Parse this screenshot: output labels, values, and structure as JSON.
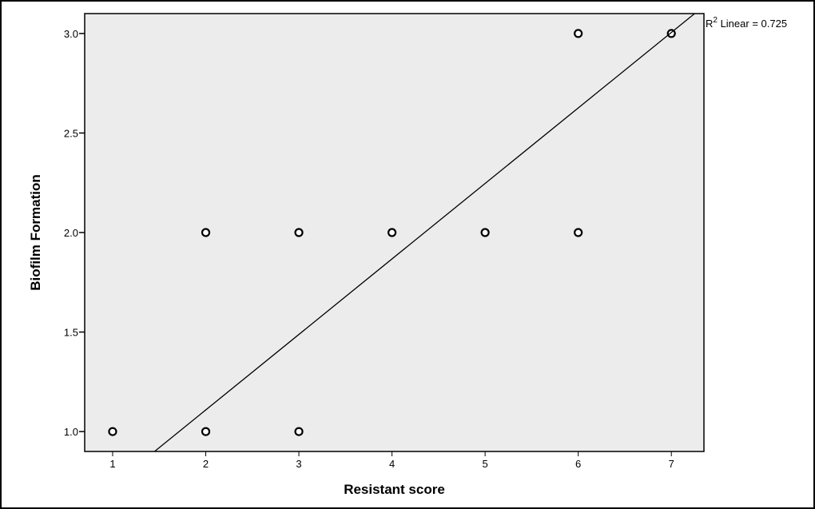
{
  "chart_data": {
    "type": "scatter",
    "title": "",
    "xlabel": "Resistant score",
    "ylabel": "Biofilm Formation",
    "xlim": [
      0.7,
      7.35
    ],
    "ylim": [
      0.9,
      3.1
    ],
    "xticks": [
      1,
      2,
      3,
      4,
      5,
      6,
      7
    ],
    "yticks": [
      1.0,
      1.5,
      2.0,
      2.5,
      3.0
    ],
    "ytick_labels": [
      "1.0",
      "1.5",
      "2.0",
      "2.5",
      "3.0"
    ],
    "points": [
      {
        "x": 1,
        "y": 1
      },
      {
        "x": 2,
        "y": 1
      },
      {
        "x": 3,
        "y": 1
      },
      {
        "x": 2,
        "y": 2
      },
      {
        "x": 3,
        "y": 2
      },
      {
        "x": 4,
        "y": 2
      },
      {
        "x": 5,
        "y": 2
      },
      {
        "x": 6,
        "y": 2
      },
      {
        "x": 6,
        "y": 3
      },
      {
        "x": 7,
        "y": 3
      }
    ],
    "fit_line": {
      "type": "linear",
      "x": [
        1.45,
        7.25
      ],
      "y": [
        0.9,
        3.1
      ]
    },
    "fit_label_prefix": "R",
    "fit_label_sup": "2",
    "fit_label_suffix": " Linear = 0.725",
    "grid": false,
    "plot_background": "#ececec",
    "point_color": "#000000"
  }
}
